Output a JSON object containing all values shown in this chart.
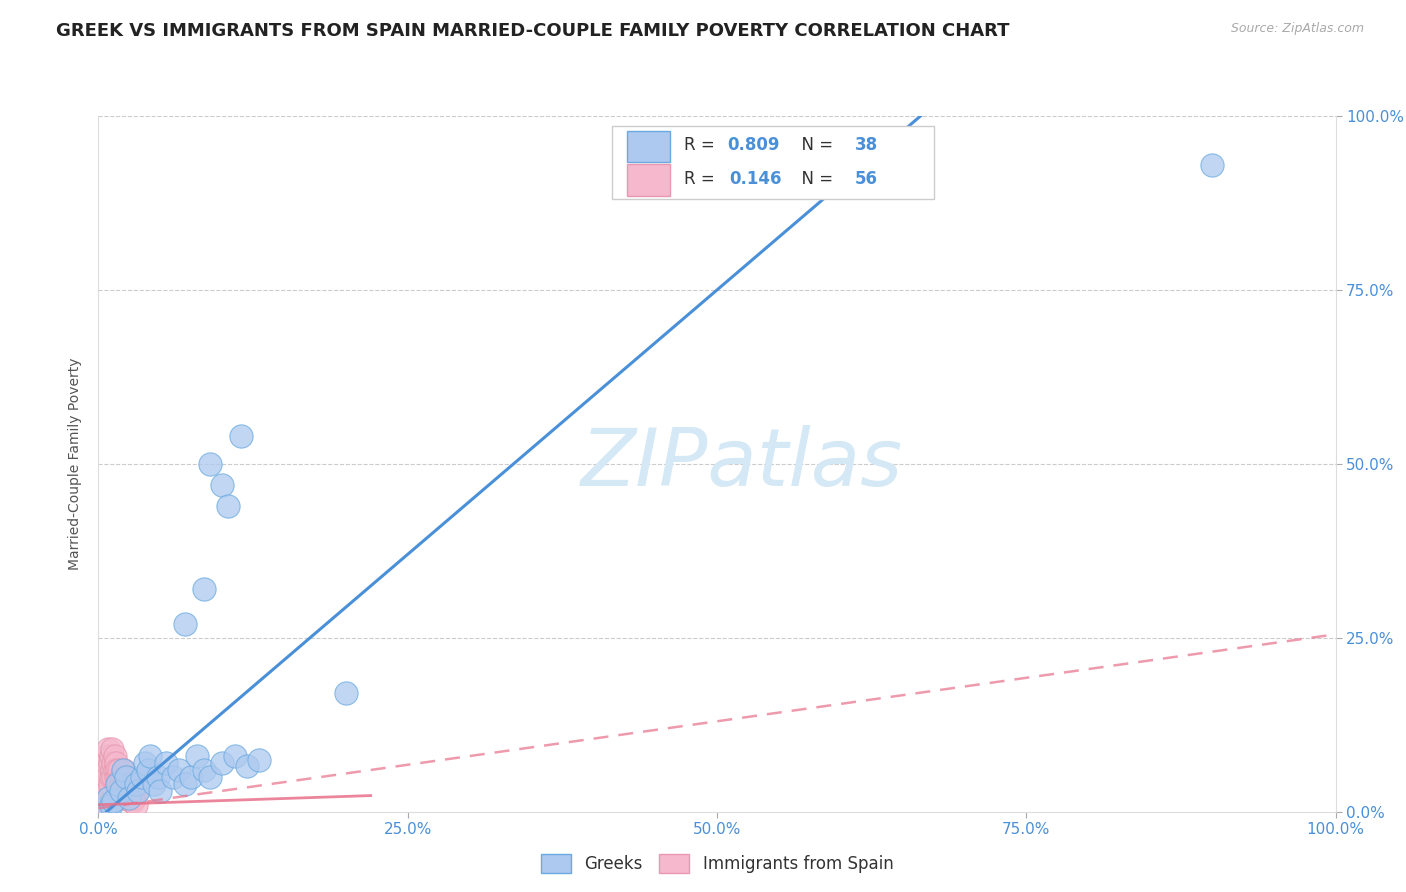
{
  "title": "GREEK VS IMMIGRANTS FROM SPAIN MARRIED-COUPLE FAMILY POVERTY CORRELATION CHART",
  "source": "Source: ZipAtlas.com",
  "ylabel": "Married-Couple Family Poverty",
  "xlim": [
    0,
    1.0
  ],
  "ylim": [
    0,
    1.0
  ],
  "xticks": [
    0.0,
    0.25,
    0.5,
    0.75,
    1.0
  ],
  "yticks": [
    0.0,
    0.25,
    0.5,
    0.75,
    1.0
  ],
  "xtick_labels": [
    "0.0%",
    "25.0%",
    "50.0%",
    "75.0%",
    "100.0%"
  ],
  "ytick_labels": [
    "0.0%",
    "25.0%",
    "50.0%",
    "75.0%",
    "100.0%"
  ],
  "greek_R": 0.809,
  "greek_N": 38,
  "spain_R": 0.146,
  "spain_N": 56,
  "greek_color": "#adc9ef",
  "greek_line_color": "#4a90d9",
  "greek_edge_color": "#6aaae0",
  "spain_color": "#f5b8cc",
  "spain_line_color": "#e8708a",
  "spain_edge_color": "#e898b0",
  "background_color": "#ffffff",
  "grid_color": "#cccccc",
  "watermark_color": "#d5e8f5",
  "title_fontsize": 13,
  "axis_label_fontsize": 10,
  "tick_fontsize": 11,
  "tick_color": "#4a90d9",
  "legend_text_color": "#4a90d9",
  "greek_slope": 1.52,
  "greek_intercept": -0.01,
  "spain_slope_solid": 0.06,
  "spain_intercept_solid": 0.01,
  "spain_slope_dashed": 0.25,
  "spain_intercept_dashed": 0.005,
  "greek_points": [
    [
      0.005,
      0.005
    ],
    [
      0.008,
      0.02
    ],
    [
      0.01,
      0.01
    ],
    [
      0.012,
      0.015
    ],
    [
      0.015,
      0.04
    ],
    [
      0.018,
      0.03
    ],
    [
      0.02,
      0.06
    ],
    [
      0.022,
      0.05
    ],
    [
      0.025,
      0.02
    ],
    [
      0.03,
      0.04
    ],
    [
      0.032,
      0.03
    ],
    [
      0.035,
      0.05
    ],
    [
      0.038,
      0.07
    ],
    [
      0.04,
      0.06
    ],
    [
      0.042,
      0.08
    ],
    [
      0.045,
      0.04
    ],
    [
      0.048,
      0.05
    ],
    [
      0.05,
      0.03
    ],
    [
      0.055,
      0.07
    ],
    [
      0.06,
      0.05
    ],
    [
      0.065,
      0.06
    ],
    [
      0.07,
      0.04
    ],
    [
      0.075,
      0.05
    ],
    [
      0.08,
      0.08
    ],
    [
      0.085,
      0.06
    ],
    [
      0.09,
      0.05
    ],
    [
      0.1,
      0.07
    ],
    [
      0.11,
      0.08
    ],
    [
      0.12,
      0.065
    ],
    [
      0.13,
      0.075
    ],
    [
      0.07,
      0.27
    ],
    [
      0.085,
      0.32
    ],
    [
      0.1,
      0.47
    ],
    [
      0.115,
      0.54
    ],
    [
      0.09,
      0.5
    ],
    [
      0.105,
      0.44
    ],
    [
      0.2,
      0.17
    ],
    [
      0.9,
      0.93
    ]
  ],
  "spain_points": [
    [
      0.002,
      0.005
    ],
    [
      0.003,
      0.01
    ],
    [
      0.004,
      0.015
    ],
    [
      0.005,
      0.02
    ],
    [
      0.005,
      0.04
    ],
    [
      0.006,
      0.06
    ],
    [
      0.006,
      0.08
    ],
    [
      0.007,
      0.05
    ],
    [
      0.007,
      0.07
    ],
    [
      0.008,
      0.03
    ],
    [
      0.008,
      0.09
    ],
    [
      0.009,
      0.04
    ],
    [
      0.009,
      0.07
    ],
    [
      0.01,
      0.05
    ],
    [
      0.01,
      0.08
    ],
    [
      0.011,
      0.06
    ],
    [
      0.011,
      0.09
    ],
    [
      0.012,
      0.07
    ],
    [
      0.012,
      0.05
    ],
    [
      0.013,
      0.08
    ],
    [
      0.013,
      0.06
    ],
    [
      0.014,
      0.05
    ],
    [
      0.014,
      0.07
    ],
    [
      0.015,
      0.06
    ],
    [
      0.015,
      0.04
    ],
    [
      0.016,
      0.05
    ],
    [
      0.016,
      0.03
    ],
    [
      0.017,
      0.04
    ],
    [
      0.017,
      0.06
    ],
    [
      0.018,
      0.05
    ],
    [
      0.018,
      0.03
    ],
    [
      0.019,
      0.04
    ],
    [
      0.019,
      0.02
    ],
    [
      0.02,
      0.03
    ],
    [
      0.02,
      0.05
    ],
    [
      0.021,
      0.04
    ],
    [
      0.021,
      0.06
    ],
    [
      0.022,
      0.05
    ],
    [
      0.022,
      0.03
    ],
    [
      0.023,
      0.04
    ],
    [
      0.023,
      0.02
    ],
    [
      0.024,
      0.03
    ],
    [
      0.024,
      0.05
    ],
    [
      0.025,
      0.04
    ],
    [
      0.025,
      0.02
    ],
    [
      0.026,
      0.03
    ],
    [
      0.026,
      0.015
    ],
    [
      0.027,
      0.025
    ],
    [
      0.027,
      0.04
    ],
    [
      0.028,
      0.03
    ],
    [
      0.028,
      0.015
    ],
    [
      0.029,
      0.02
    ],
    [
      0.029,
      0.035
    ],
    [
      0.03,
      0.025
    ],
    [
      0.03,
      0.01
    ],
    [
      0.001,
      0.005
    ]
  ]
}
